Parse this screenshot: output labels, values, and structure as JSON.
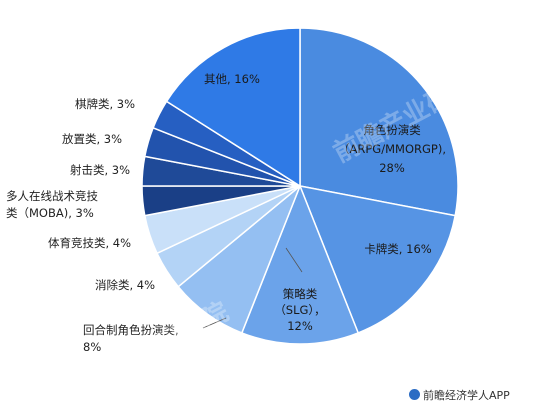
{
  "chart_data": {
    "type": "pie",
    "title": "",
    "slices": [
      {
        "label_lines": [
          "角色扮演类",
          "（ARPG/MMORGP),",
          "28%"
        ],
        "name": "角色扮演类（ARPG/MMORGP)",
        "value": 28,
        "color": "#4a8be0"
      },
      {
        "label_lines": [
          "卡牌类, 16%"
        ],
        "name": "卡牌类",
        "value": 16,
        "color": "#5694e4"
      },
      {
        "label_lines": [
          "策略类",
          "（SLG），",
          "12%"
        ],
        "name": "策略类（SLG）",
        "value": 12,
        "color": "#6ba3ea"
      },
      {
        "label_lines": [
          "回合制角色扮演类,",
          "8%"
        ],
        "name": "回合制角色扮演类",
        "value": 8,
        "color": "#94bff2"
      },
      {
        "label_lines": [
          "消除类, 4%"
        ],
        "name": "消除类",
        "value": 4,
        "color": "#b3d3f6"
      },
      {
        "label_lines": [
          "体育竞技类, 4%"
        ],
        "name": "体育竞技类",
        "value": 4,
        "color": "#c9e0f9"
      },
      {
        "label_lines": [
          "多人在线战术竞技",
          "类（MOBA), 3%"
        ],
        "name": "多人在线战术竞技类（MOBA)",
        "value": 3,
        "color": "#1a3f86"
      },
      {
        "label_lines": [
          "射击类, 3%"
        ],
        "name": "射击类",
        "value": 3,
        "color": "#1f4a98"
      },
      {
        "label_lines": [
          "放置类, 3%"
        ],
        "name": "放置类",
        "value": 3,
        "color": "#2253ad"
      },
      {
        "label_lines": [
          "棋牌类, 3%"
        ],
        "name": "棋牌类",
        "value": 3,
        "color": "#265fc2"
      },
      {
        "label_lines": [
          "其他, 16%"
        ],
        "name": "其他",
        "value": 16,
        "color": "#2f7ae6"
      }
    ],
    "legend": "none"
  },
  "watermark": "前瞻产业研究院",
  "footer": {
    "source": "前瞻经济学人APP"
  }
}
